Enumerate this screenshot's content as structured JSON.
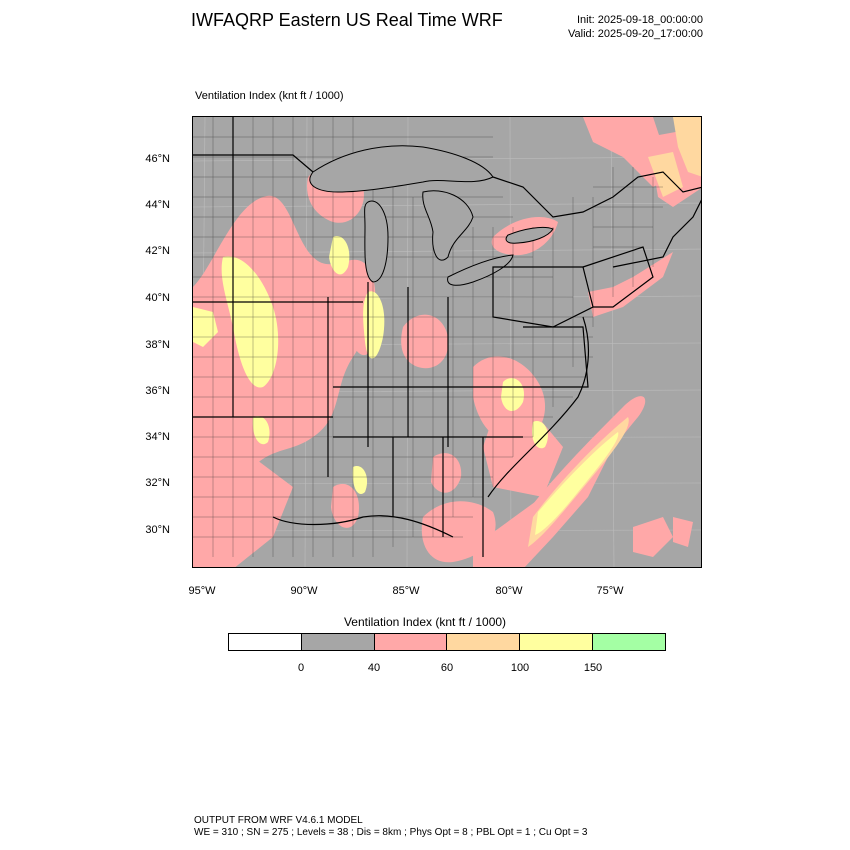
{
  "title": "IWFAQRP Eastern US Real Time WRF",
  "init": "Init: 2025-09-18_00:00:00",
  "valid": "Valid: 2025-09-20_17:00:00",
  "map_label": "Ventilation Index   (knt ft / 1000)",
  "lat_labels": [
    "46°N",
    "44°N",
    "42°N",
    "40°N",
    "38°N",
    "36°N",
    "34°N",
    "32°N",
    "30°N"
  ],
  "lon_labels": [
    "95°W",
    "90°W",
    "85°W",
    "80°W",
    "75°W"
  ],
  "legend": {
    "title": "Ventilation Index  (knt ft / 1000)",
    "colors": [
      "#ffffff",
      "#a6a6a6",
      "#ffa8a8",
      "#ffd8a0",
      "#ffff9f",
      "#a4ffa4"
    ],
    "ticks": [
      "0",
      "40",
      "60",
      "100",
      "150"
    ]
  },
  "colors": {
    "water": "#a6a6a6",
    "low": "#a6a6a6",
    "moderate": "#ffa8a8",
    "good": "#ffd8a0",
    "very_good": "#ffff9f"
  },
  "footer": {
    "line1": "OUTPUT FROM WRF V4.6.1 MODEL",
    "line2": "WE = 310 ; SN = 275 ; Levels = 38 ; Dis = 8km ; Phys Opt = 8 ; PBL Opt = 1 ; Cu Opt = 3"
  }
}
